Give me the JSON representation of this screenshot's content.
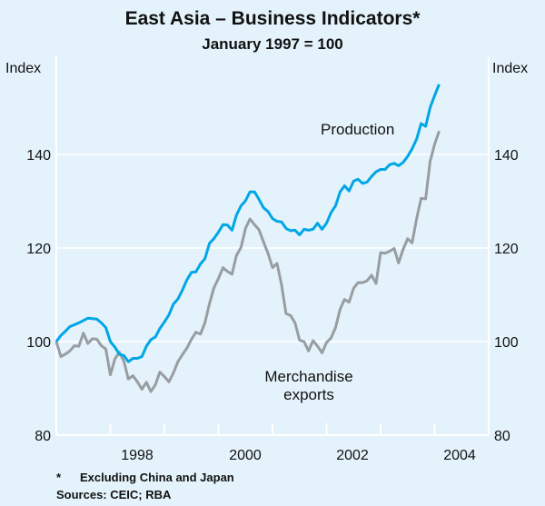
{
  "chart_data": {
    "type": "line",
    "title": "East Asia – Business Indicators*",
    "subtitle": "January 1997 = 100",
    "ylabel_left": "Index",
    "ylabel_right": "Index",
    "ylim": [
      80,
      160
    ],
    "yticks": [
      80,
      100,
      120,
      140
    ],
    "xlim": [
      1997,
      2005
    ],
    "xtick_labels": [
      "1998",
      "2000",
      "2002",
      "2004"
    ],
    "x_start": "January 1997",
    "frequency": "monthly",
    "grid": true,
    "series": [
      {
        "name": "Production",
        "color": "#00a6e6",
        "values": [
          100,
          101.3,
          102.2,
          103.2,
          103.6,
          104,
          104.5,
          105,
          104.9,
          104.8,
          104,
          103,
          100,
          98.8,
          97.3,
          97,
          95.7,
          96.4,
          96.4,
          96.8,
          99,
          100.4,
          101,
          102.8,
          104.2,
          105.7,
          108,
          109.1,
          111,
          113.2,
          114.8,
          114.9,
          116.6,
          117.7,
          121,
          122,
          123.4,
          125,
          124.9,
          123.8,
          127,
          129,
          130.1,
          132,
          132,
          130.4,
          128.6,
          127.8,
          126.3,
          125.7,
          125.6,
          124.2,
          123.7,
          123.8,
          122.8,
          124,
          123.8,
          124,
          125.3,
          124,
          125.3,
          127.6,
          129,
          132,
          133.3,
          132.2,
          134.3,
          134.7,
          133.8,
          134.1,
          135.3,
          136.3,
          136.8,
          136.8,
          137.8,
          138.1,
          137.6,
          138.3,
          139.6,
          141.2,
          143.3,
          146.6,
          146,
          150,
          152.6,
          155
        ]
      },
      {
        "name": "Merchandise exports",
        "color": "#989da1",
        "values": [
          100,
          96.8,
          97.3,
          98,
          99.1,
          99,
          101.8,
          99.6,
          100.6,
          100.5,
          99.1,
          98.4,
          92.9,
          96.3,
          97.7,
          95.8,
          92,
          92.7,
          91.4,
          89.8,
          91.3,
          89.3,
          90.8,
          93.5,
          92.5,
          91.4,
          93.3,
          95.7,
          97.2,
          98.6,
          100.5,
          102,
          101.6,
          104,
          108.1,
          111.5,
          113.5,
          115.8,
          115,
          114.4,
          118.4,
          120.1,
          124.2,
          126.2,
          125,
          123.9,
          121.3,
          118.9,
          115.8,
          116.7,
          112.2,
          106,
          105.6,
          104,
          100.3,
          100,
          98,
          100.2,
          99,
          97.6,
          99.8,
          100.8,
          103,
          106.9,
          109,
          108.4,
          111.4,
          112.6,
          112.6,
          113,
          114.2,
          112.4,
          119,
          118.9,
          119.3,
          119.9,
          116.8,
          119.7,
          122,
          121.1,
          126.3,
          130.6,
          130.5,
          138.5,
          142.2,
          145
        ]
      }
    ],
    "annotations": {
      "production": "Production",
      "exports_line1": "Merchandise",
      "exports_line2": "exports"
    },
    "footnote": "Excluding China and Japan",
    "footnote_marker": "*",
    "sources": "Sources: CEIC; RBA"
  }
}
